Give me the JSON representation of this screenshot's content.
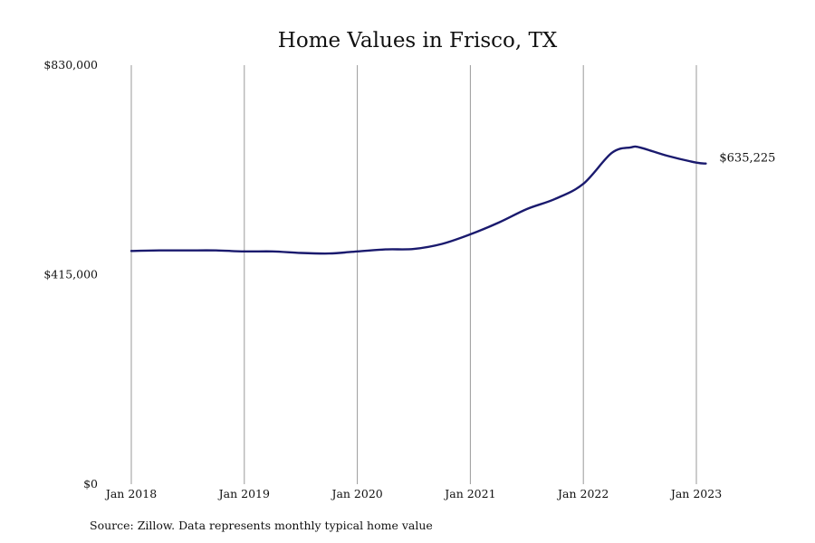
{
  "chart_data": {
    "type": "line",
    "title": "Home Values in Frisco, TX",
    "xlabel": "",
    "ylabel": "",
    "ylim": [
      0,
      830000
    ],
    "y_ticks": [
      {
        "value": 0,
        "label": "$0"
      },
      {
        "value": 415000,
        "label": "$415,000"
      },
      {
        "value": 830000,
        "label": "$830,000"
      }
    ],
    "x_ticks": [
      {
        "value": "2018-01",
        "label": "Jan 2018"
      },
      {
        "value": "2019-01",
        "label": "Jan 2019"
      },
      {
        "value": "2020-01",
        "label": "Jan 2020"
      },
      {
        "value": "2021-01",
        "label": "Jan 2021"
      },
      {
        "value": "2022-01",
        "label": "Jan 2022"
      },
      {
        "value": "2023-01",
        "label": "Jan 2023"
      }
    ],
    "xlim": [
      "2018-01",
      "2023-01"
    ],
    "grid": "vertical",
    "line_color": "#1a1a6e",
    "series": [
      {
        "x": [
          "2018-01",
          "2018-04",
          "2018-07",
          "2018-10",
          "2019-01",
          "2019-04",
          "2019-07",
          "2019-10",
          "2020-01",
          "2020-04",
          "2020-07",
          "2020-10",
          "2021-01",
          "2021-04",
          "2021-07",
          "2021-10",
          "2022-01",
          "2022-04",
          "2022-06",
          "2022-07",
          "2022-10",
          "2023-01",
          "2023-02"
        ],
        "y": [
          462000,
          463000,
          463000,
          463000,
          461000,
          461000,
          458000,
          457000,
          461000,
          465000,
          466000,
          476000,
          495000,
          518000,
          545000,
          565000,
          595000,
          656000,
          667000,
          667000,
          650000,
          637000,
          635225
        ]
      }
    ],
    "end_label": "$635,225",
    "source_note": "Source: Zillow. Data represents monthly typical home value"
  }
}
